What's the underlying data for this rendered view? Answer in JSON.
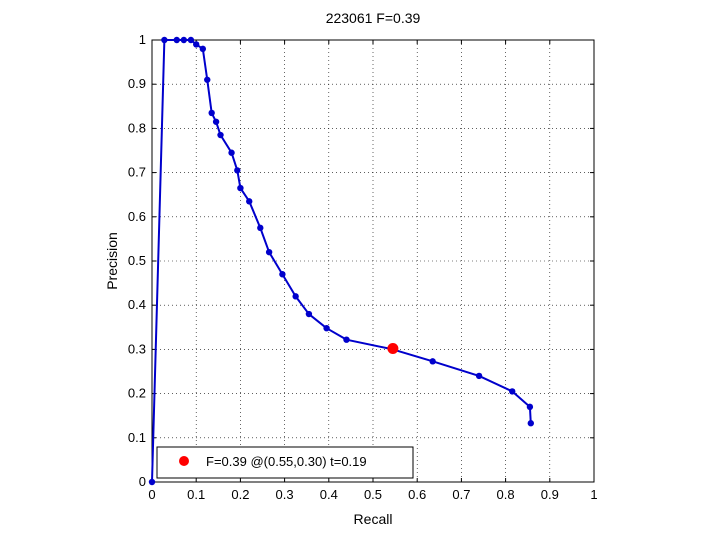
{
  "chart_data": {
    "type": "line",
    "title": "223061 F=0.39",
    "xlabel": "Recall",
    "ylabel": "Precision",
    "xlim": [
      0,
      1
    ],
    "ylim": [
      0,
      1
    ],
    "xticks": [
      "0",
      "0.1",
      "0.2",
      "0.3",
      "0.4",
      "0.5",
      "0.6",
      "0.7",
      "0.8",
      "0.9",
      "1"
    ],
    "yticks": [
      "0",
      "0.1",
      "0.2",
      "0.3",
      "0.4",
      "0.5",
      "0.6",
      "0.7",
      "0.8",
      "0.9",
      "1"
    ],
    "grid": true,
    "series": [
      {
        "color": "#0000cc",
        "points": [
          [
            0.0,
            0.0
          ],
          [
            0.028,
            1.0
          ],
          [
            0.056,
            1.0
          ],
          [
            0.072,
            1.0
          ],
          [
            0.088,
            1.0
          ],
          [
            0.1,
            0.99
          ],
          [
            0.115,
            0.98
          ],
          [
            0.125,
            0.91
          ],
          [
            0.135,
            0.835
          ],
          [
            0.145,
            0.815
          ],
          [
            0.155,
            0.785
          ],
          [
            0.18,
            0.745
          ],
          [
            0.193,
            0.705
          ],
          [
            0.2,
            0.665
          ],
          [
            0.22,
            0.635
          ],
          [
            0.245,
            0.575
          ],
          [
            0.265,
            0.52
          ],
          [
            0.295,
            0.47
          ],
          [
            0.325,
            0.42
          ],
          [
            0.355,
            0.38
          ],
          [
            0.395,
            0.348
          ],
          [
            0.44,
            0.322
          ],
          [
            0.545,
            0.3
          ],
          [
            0.635,
            0.273
          ],
          [
            0.74,
            0.24
          ],
          [
            0.815,
            0.205
          ],
          [
            0.855,
            0.17
          ],
          [
            0.857,
            0.133
          ]
        ]
      }
    ],
    "best_point": {
      "x": 0.545,
      "y": 0.302,
      "color": "#ff0000"
    },
    "legend": {
      "position": "bottom-left",
      "label": "F=0.39 @(0.55,0.30) t=0.19"
    }
  }
}
